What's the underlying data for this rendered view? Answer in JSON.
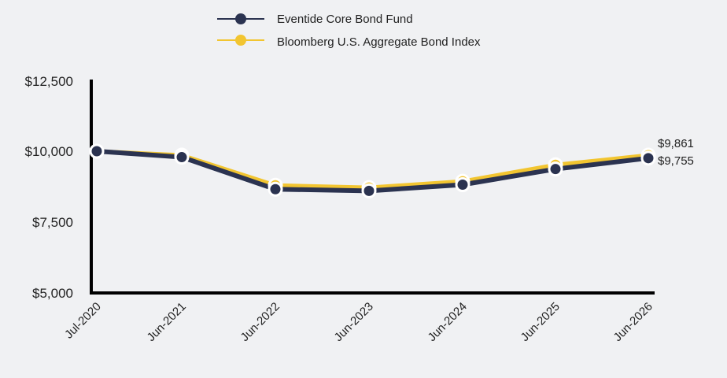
{
  "chart_data": {
    "type": "line",
    "title": "",
    "xlabel": "",
    "ylabel": "",
    "categories": [
      "Jul-2020",
      "Jun-2021",
      "Jun-2022",
      "Jun-2023",
      "Jun-2024",
      "Jun-2025",
      "Jun-2026"
    ],
    "y_ticks": [
      "$12,500",
      "$10,000",
      "$7,500",
      "$5,000"
    ],
    "ylim": [
      5000,
      12500
    ],
    "legend_placement": "top",
    "grid": false,
    "series": [
      {
        "name": "Eventide Core Bond Fund",
        "color": "#2b3350",
        "values": [
          10000,
          9790,
          8660,
          8600,
          8820,
          9370,
          9755
        ],
        "end_label": "$9,755"
      },
      {
        "name": "Bloomberg U.S. Aggregate Bond Index",
        "color": "#f2c530",
        "values": [
          10000,
          9860,
          8800,
          8720,
          8940,
          9520,
          9861
        ],
        "end_label": "$9,861"
      }
    ]
  }
}
